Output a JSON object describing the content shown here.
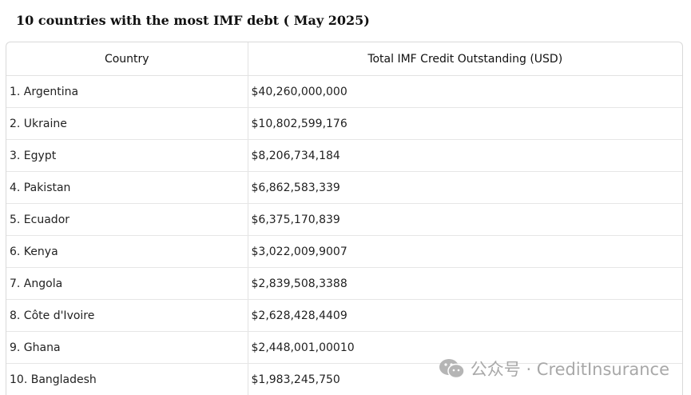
{
  "title": "10 countries with the most IMF debt ( May 2025)",
  "table": {
    "headers": [
      "Country",
      "Total IMF Credit Outstanding (USD)"
    ],
    "rows": [
      [
        "1. Argentina",
        "$40,260,000,000"
      ],
      [
        "2. Ukraine",
        "$10,802,599,176"
      ],
      [
        "3. Egypt",
        "$8,206,734,184"
      ],
      [
        "4. Pakistan",
        "$6,862,583,339"
      ],
      [
        "5. Ecuador",
        "$6,375,170,839"
      ],
      [
        "6. Kenya",
        "$3,022,009,9007"
      ],
      [
        "7. Angola",
        "$2,839,508,3388"
      ],
      [
        "8. Côte d'Ivoire",
        "$2,628,428,4409"
      ],
      [
        "9. Ghana",
        "$2,448,001,00010"
      ],
      [
        "10. Bangladesh",
        "$1,983,245,750"
      ]
    ]
  },
  "watermark": {
    "text": "公众号 · CreditInsurance",
    "icon": "wechat-icon"
  }
}
